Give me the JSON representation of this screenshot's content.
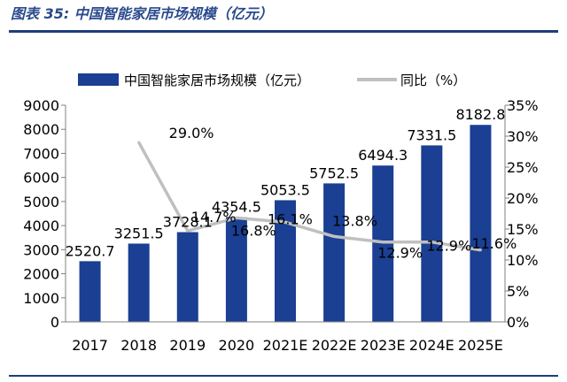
{
  "caption": "图表 35:  中国智能家居市场规模（亿元）",
  "colors": {
    "bar": "#1a3f93",
    "line": "#c0c0c0",
    "rule": "#1f3d7a",
    "caption": "#2a4a8c"
  },
  "chart_data": {
    "type": "bar",
    "categories": [
      "2017",
      "2018",
      "2019",
      "2020",
      "2021E",
      "2022E",
      "2023E",
      "2024E",
      "2025E"
    ],
    "series": [
      {
        "name": "中国智能家居市场规模（亿元）",
        "type": "bar",
        "axis": "left",
        "values": [
          2520.7,
          3251.5,
          3728.1,
          4354.5,
          5053.5,
          5752.5,
          6494.3,
          7331.5,
          8182.8
        ],
        "labels": [
          "2520.7",
          "3251.5",
          "3728.1",
          "4354.5",
          "5053.5",
          "5752.5",
          "6494.3",
          "7331.5",
          "8182.8"
        ]
      },
      {
        "name": "同比（%）",
        "type": "line",
        "axis": "right",
        "values": [
          null,
          29.0,
          14.7,
          16.8,
          16.1,
          13.8,
          12.9,
          12.9,
          11.6
        ],
        "labels": [
          "",
          "29.0%",
          "14.7%",
          "16.8%",
          "16.1%",
          "13.8%",
          "12.9%",
          "12.9%",
          "11.6%"
        ]
      }
    ],
    "ylim": [
      0,
      9000
    ],
    "yticks": [
      0,
      1000,
      2000,
      3000,
      4000,
      5000,
      6000,
      7000,
      8000,
      9000
    ],
    "ytick_labels": [
      "0",
      "1000",
      "2000",
      "3000",
      "4000",
      "5000",
      "6000",
      "7000",
      "8000",
      "9000"
    ],
    "y2lim": [
      0,
      35
    ],
    "y2ticks": [
      0,
      5,
      10,
      15,
      20,
      25,
      30,
      35
    ],
    "y2tick_labels": [
      "0%",
      "5%",
      "10%",
      "15%",
      "20%",
      "25%",
      "30%",
      "35%"
    ],
    "grid": false,
    "legend": "top-left"
  }
}
